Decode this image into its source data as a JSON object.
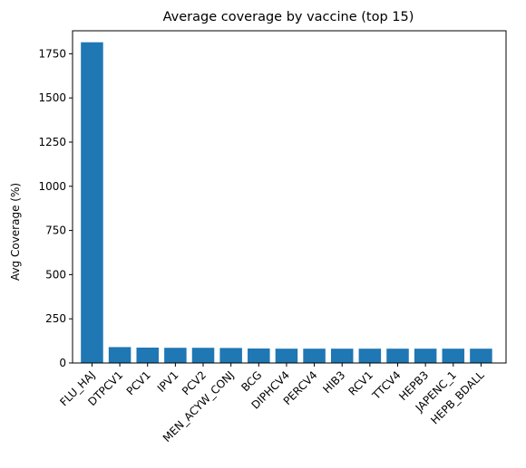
{
  "chart_data": {
    "type": "bar",
    "title": "Average coverage by vaccine (top 15)",
    "xlabel": "",
    "ylabel": "Avg Coverage (%)",
    "ylim": [
      0,
      1880
    ],
    "yticks": [
      0,
      250,
      500,
      750,
      1000,
      1250,
      1500,
      1750
    ],
    "grid": false,
    "bar_color": "#1f77b4",
    "categories": [
      "FLU_HAJ",
      "DTPCV1",
      "PCV1",
      "IPV1",
      "PCV2",
      "MEN_ACYW_CONJ",
      "BCG",
      "DIPHCV4",
      "PERCV4",
      "HIB3",
      "RCV1",
      "TTCV4",
      "HEPB3",
      "JAPENC_1",
      "HEPB_BDALL"
    ],
    "values": [
      1815,
      90,
      87,
      86,
      86,
      85,
      82,
      81,
      81,
      81,
      81,
      81,
      81,
      81,
      81
    ]
  }
}
